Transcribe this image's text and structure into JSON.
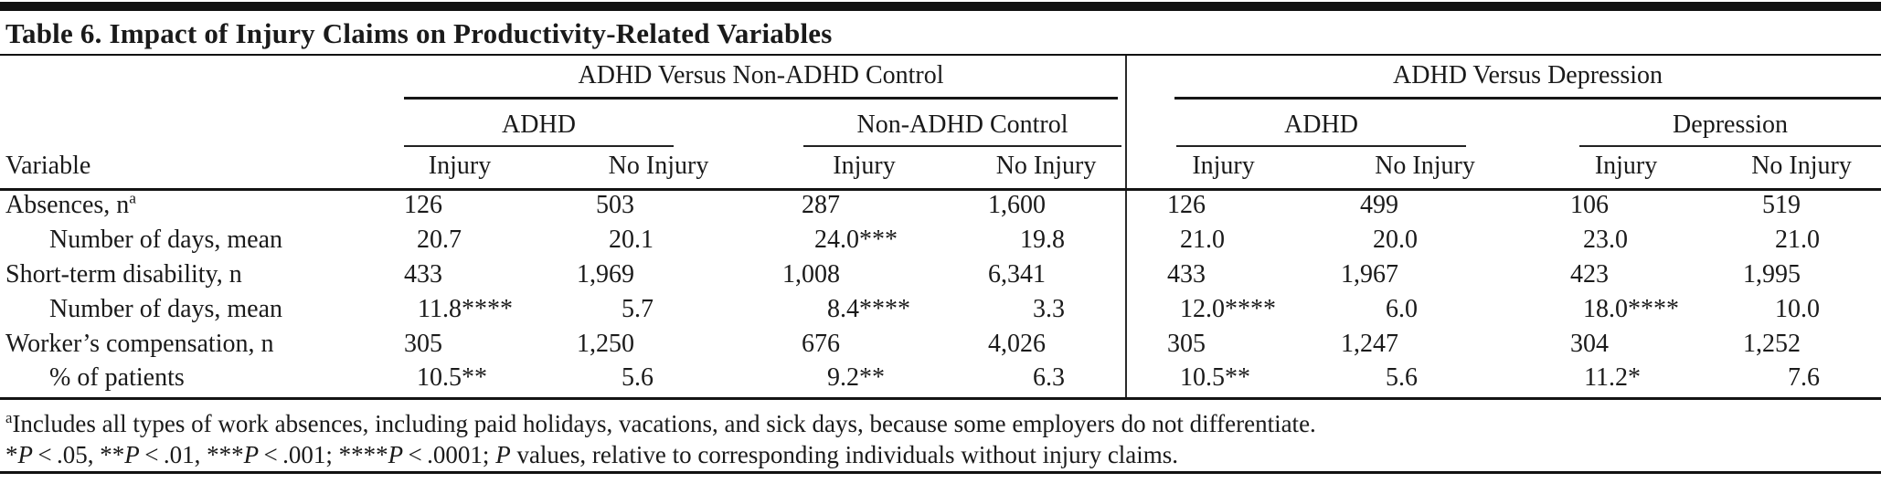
{
  "title": "Table 6. Impact of Injury Claims on Productivity-Related Variables",
  "table": {
    "row_header": "Variable",
    "groups": [
      {
        "label": "ADHD Versus Non-ADHD Control",
        "subgroups": [
          {
            "label": "ADHD"
          },
          {
            "label": "Non-ADHD Control"
          }
        ]
      },
      {
        "label": "ADHD Versus Depression",
        "subgroups": [
          {
            "label": "ADHD"
          },
          {
            "label": "Depression"
          }
        ]
      }
    ],
    "leaf_headers": [
      "Injury",
      "No Injury",
      "Injury",
      "No Injury",
      "Injury",
      "No Injury",
      "Injury",
      "No Injury"
    ],
    "rows": [
      {
        "label": "Absences, n",
        "label_sup": "a",
        "indent": false,
        "values": [
          "126",
          "503",
          "287",
          "1,600",
          "126",
          "499",
          "106",
          "519"
        ]
      },
      {
        "label": "Number of days, mean",
        "indent": true,
        "values": [
          "20.7",
          "20.1",
          "24.0***",
          "19.8",
          "21.0",
          "20.0",
          "23.0",
          "21.0"
        ]
      },
      {
        "label": "Short-term disability, n",
        "indent": false,
        "values": [
          "433",
          "1,969",
          "1,008",
          "6,341",
          "433",
          "1,967",
          "423",
          "1,995"
        ]
      },
      {
        "label": "Number of days, mean",
        "indent": true,
        "values": [
          "11.8****",
          "5.7",
          "8.4****",
          "3.3",
          "12.0****",
          "6.0",
          "18.0****",
          "10.0"
        ]
      },
      {
        "label": "Worker’s compensation, n",
        "indent": false,
        "values": [
          "305",
          "1,250",
          "676",
          "4,026",
          "305",
          "1,247",
          "304",
          "1,252"
        ]
      },
      {
        "label": "% of patients",
        "indent": true,
        "values": [
          "10.5**",
          "5.6",
          "9.2**",
          "6.3",
          "10.5**",
          "5.6",
          "11.2*",
          "7.6"
        ]
      }
    ]
  },
  "footnotes": {
    "absence_note_sup": "a",
    "absence_note": "Includes all types of work absences, including paid holidays, vacations, and sick days, because some employers do not differentiate.",
    "significance_segments": [
      {
        "t": "*"
      },
      {
        "t": "P",
        "i": true
      },
      {
        "t": " < .05, **"
      },
      {
        "t": "P",
        "i": true
      },
      {
        "t": " < .01, ***"
      },
      {
        "t": "P",
        "i": true
      },
      {
        "t": " < .001; ****"
      },
      {
        "t": "P",
        "i": true
      },
      {
        "t": " < .0001; "
      },
      {
        "t": "P",
        "i": true
      },
      {
        "t": " values, relative to corresponding individuals without injury claims."
      }
    ]
  }
}
